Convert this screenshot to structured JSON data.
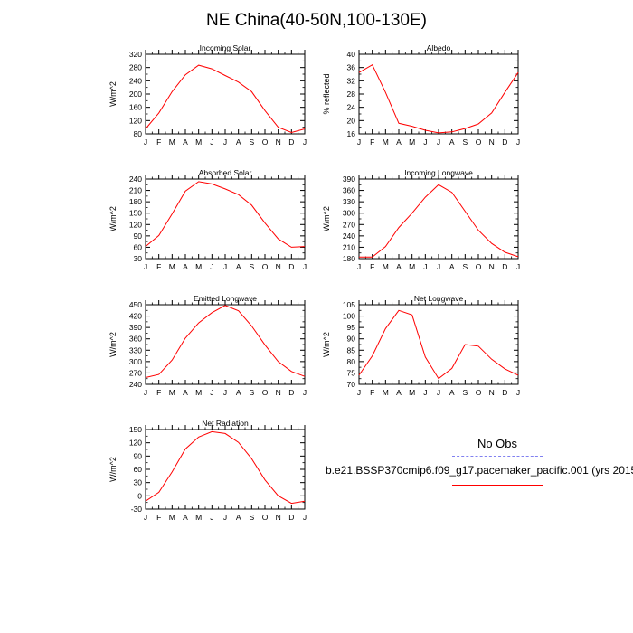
{
  "figure_title": "NE China(40-50N,100-130E)",
  "legend": {
    "header": "No Obs",
    "obs_color": "#8080f0",
    "model_color": "#ff0000",
    "model_label": "b.e21.BSSP370cmip6.f09_g17.pacemaker_pacific.001 (yrs 2015"
  },
  "chart_data": [
    {
      "type": "line",
      "title": "Incoming Solar",
      "ylabel": "W/m^2",
      "xlabel": "",
      "categories": [
        "J",
        "F",
        "M",
        "A",
        "M",
        "J",
        "J",
        "A",
        "S",
        "O",
        "N",
        "D",
        "J"
      ],
      "ylim": [
        80,
        320
      ],
      "yticks": [
        80,
        120,
        160,
        200,
        240,
        280,
        320
      ],
      "grid": false,
      "series": [
        {
          "name": "model",
          "color": "#ff0000",
          "values": [
            95,
            143,
            207,
            258,
            287,
            276,
            256,
            236,
            207,
            150,
            100,
            84,
            95
          ]
        }
      ]
    },
    {
      "type": "line",
      "title": "Albedo",
      "ylabel": "% reflected",
      "xlabel": "",
      "categories": [
        "J",
        "F",
        "M",
        "A",
        "M",
        "J",
        "J",
        "A",
        "S",
        "O",
        "N",
        "D",
        "J"
      ],
      "ylim": [
        16,
        40
      ],
      "yticks": [
        16,
        20,
        24,
        28,
        32,
        36,
        40
      ],
      "grid": false,
      "series": [
        {
          "name": "model",
          "color": "#ff0000",
          "values": [
            34.5,
            36.8,
            28.5,
            19.2,
            18.3,
            17.1,
            16.3,
            16.6,
            17.6,
            19.0,
            22.3,
            28.5,
            34.5
          ]
        }
      ]
    },
    {
      "type": "line",
      "title": "Absorbed Solar",
      "ylabel": "W/m^2",
      "xlabel": "",
      "categories": [
        "J",
        "F",
        "M",
        "A",
        "M",
        "J",
        "J",
        "A",
        "S",
        "O",
        "N",
        "D",
        "J"
      ],
      "ylim": [
        30,
        240
      ],
      "yticks": [
        30,
        60,
        90,
        120,
        150,
        180,
        210,
        240
      ],
      "grid": false,
      "series": [
        {
          "name": "model",
          "color": "#ff0000",
          "values": [
            62,
            91,
            148,
            208,
            233,
            227,
            214,
            199,
            171,
            124,
            82,
            60,
            62
          ]
        }
      ]
    },
    {
      "type": "line",
      "title": "Incoming Longwave",
      "ylabel": "W/m^2",
      "xlabel": "",
      "categories": [
        "J",
        "F",
        "M",
        "A",
        "M",
        "J",
        "J",
        "A",
        "S",
        "O",
        "N",
        "D",
        "J"
      ],
      "ylim": [
        180,
        390
      ],
      "yticks": [
        180,
        210,
        240,
        270,
        300,
        330,
        360,
        390
      ],
      "grid": false,
      "series": [
        {
          "name": "model",
          "color": "#ff0000",
          "values": [
            184,
            184,
            212,
            262,
            300,
            342,
            375,
            355,
            305,
            255,
            220,
            197,
            185
          ]
        }
      ]
    },
    {
      "type": "line",
      "title": "Emitted Longwave",
      "ylabel": "W/m^2",
      "xlabel": "",
      "categories": [
        "J",
        "F",
        "M",
        "A",
        "M",
        "J",
        "J",
        "A",
        "S",
        "O",
        "N",
        "D",
        "J"
      ],
      "ylim": [
        240,
        450
      ],
      "yticks": [
        240,
        270,
        300,
        330,
        360,
        390,
        420,
        450
      ],
      "grid": false,
      "series": [
        {
          "name": "model",
          "color": "#ff0000",
          "values": [
            258,
            266,
            304,
            362,
            402,
            429,
            448,
            434,
            394,
            344,
            300,
            274,
            261
          ]
        }
      ]
    },
    {
      "type": "line",
      "title": "Net Longwave",
      "ylabel": "W/m^2",
      "xlabel": "",
      "categories": [
        "J",
        "F",
        "M",
        "A",
        "M",
        "J",
        "J",
        "A",
        "S",
        "O",
        "N",
        "D",
        "J"
      ],
      "ylim": [
        70,
        105
      ],
      "yticks": [
        70,
        75,
        80,
        85,
        90,
        95,
        100,
        105
      ],
      "grid": false,
      "series": [
        {
          "name": "model",
          "color": "#ff0000",
          "values": [
            74,
            82.5,
            94.5,
            102.5,
            100.5,
            82,
            72.5,
            77,
            87.5,
            86.8,
            81,
            76.8,
            74
          ]
        }
      ]
    },
    {
      "type": "line",
      "title": "Net Radiation",
      "ylabel": "W/m^2",
      "xlabel": "",
      "categories": [
        "J",
        "F",
        "M",
        "A",
        "M",
        "J",
        "J",
        "A",
        "S",
        "O",
        "N",
        "D",
        "J"
      ],
      "ylim": [
        -30,
        150
      ],
      "yticks": [
        -30,
        0,
        30,
        60,
        90,
        120,
        150
      ],
      "grid": false,
      "series": [
        {
          "name": "model",
          "color": "#ff0000",
          "values": [
            -12,
            8,
            54,
            106,
            133,
            145,
            141,
            121,
            84,
            36,
            0,
            -17,
            -12
          ]
        }
      ]
    }
  ]
}
